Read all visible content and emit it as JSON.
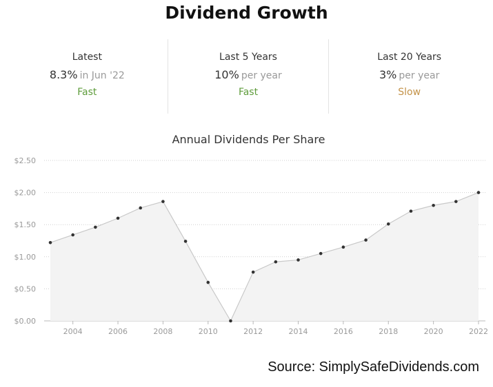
{
  "title": "Dividend Growth",
  "stats": [
    {
      "label": "Latest",
      "value": "8.3%",
      "unit": "in Jun '22",
      "rating": "Fast"
    },
    {
      "label": "Last 5 Years",
      "value": "10%",
      "unit": "per year",
      "rating": "Fast"
    },
    {
      "label": "Last 20 Years",
      "value": "3%",
      "unit": "per year",
      "rating": "Slow"
    }
  ],
  "colors": {
    "fast": "#5e9c3b",
    "slow": "#c39248",
    "line": "#c8c8c8",
    "area": "#f3f3f3",
    "point": "#333333"
  },
  "chart_data": {
    "type": "area",
    "title": "Annual Dividends Per Share",
    "xlabel": "",
    "ylabel": "",
    "x": [
      2003,
      2004,
      2005,
      2006,
      2007,
      2008,
      2009,
      2010,
      2011,
      2012,
      2013,
      2014,
      2015,
      2016,
      2017,
      2018,
      2019,
      2020,
      2021,
      2022
    ],
    "series": [
      {
        "values": [
          1.22,
          1.34,
          1.46,
          1.6,
          1.76,
          1.86,
          1.24,
          0.6,
          0.0,
          0.76,
          0.92,
          0.95,
          1.05,
          1.15,
          1.26,
          1.51,
          1.71,
          1.8,
          1.86,
          2.0
        ]
      }
    ],
    "ylim": [
      0,
      2.5
    ],
    "xlim": [
      2003,
      2022
    ],
    "yticks": [
      0,
      0.5,
      1.0,
      1.5,
      2.0,
      2.5
    ],
    "ytick_labels": [
      "$0.00",
      "$0.50",
      "$1.00",
      "$1.50",
      "$2.00",
      "$2.50"
    ],
    "xticks": [
      2004,
      2006,
      2008,
      2010,
      2012,
      2014,
      2016,
      2018,
      2020,
      2022
    ],
    "xtick_labels": [
      "2004",
      "2006",
      "2008",
      "2010",
      "2012",
      "2014",
      "2016",
      "2018",
      "2020",
      "2022"
    ],
    "grid": true
  },
  "source": "Source: SimplySafeDividends.com"
}
